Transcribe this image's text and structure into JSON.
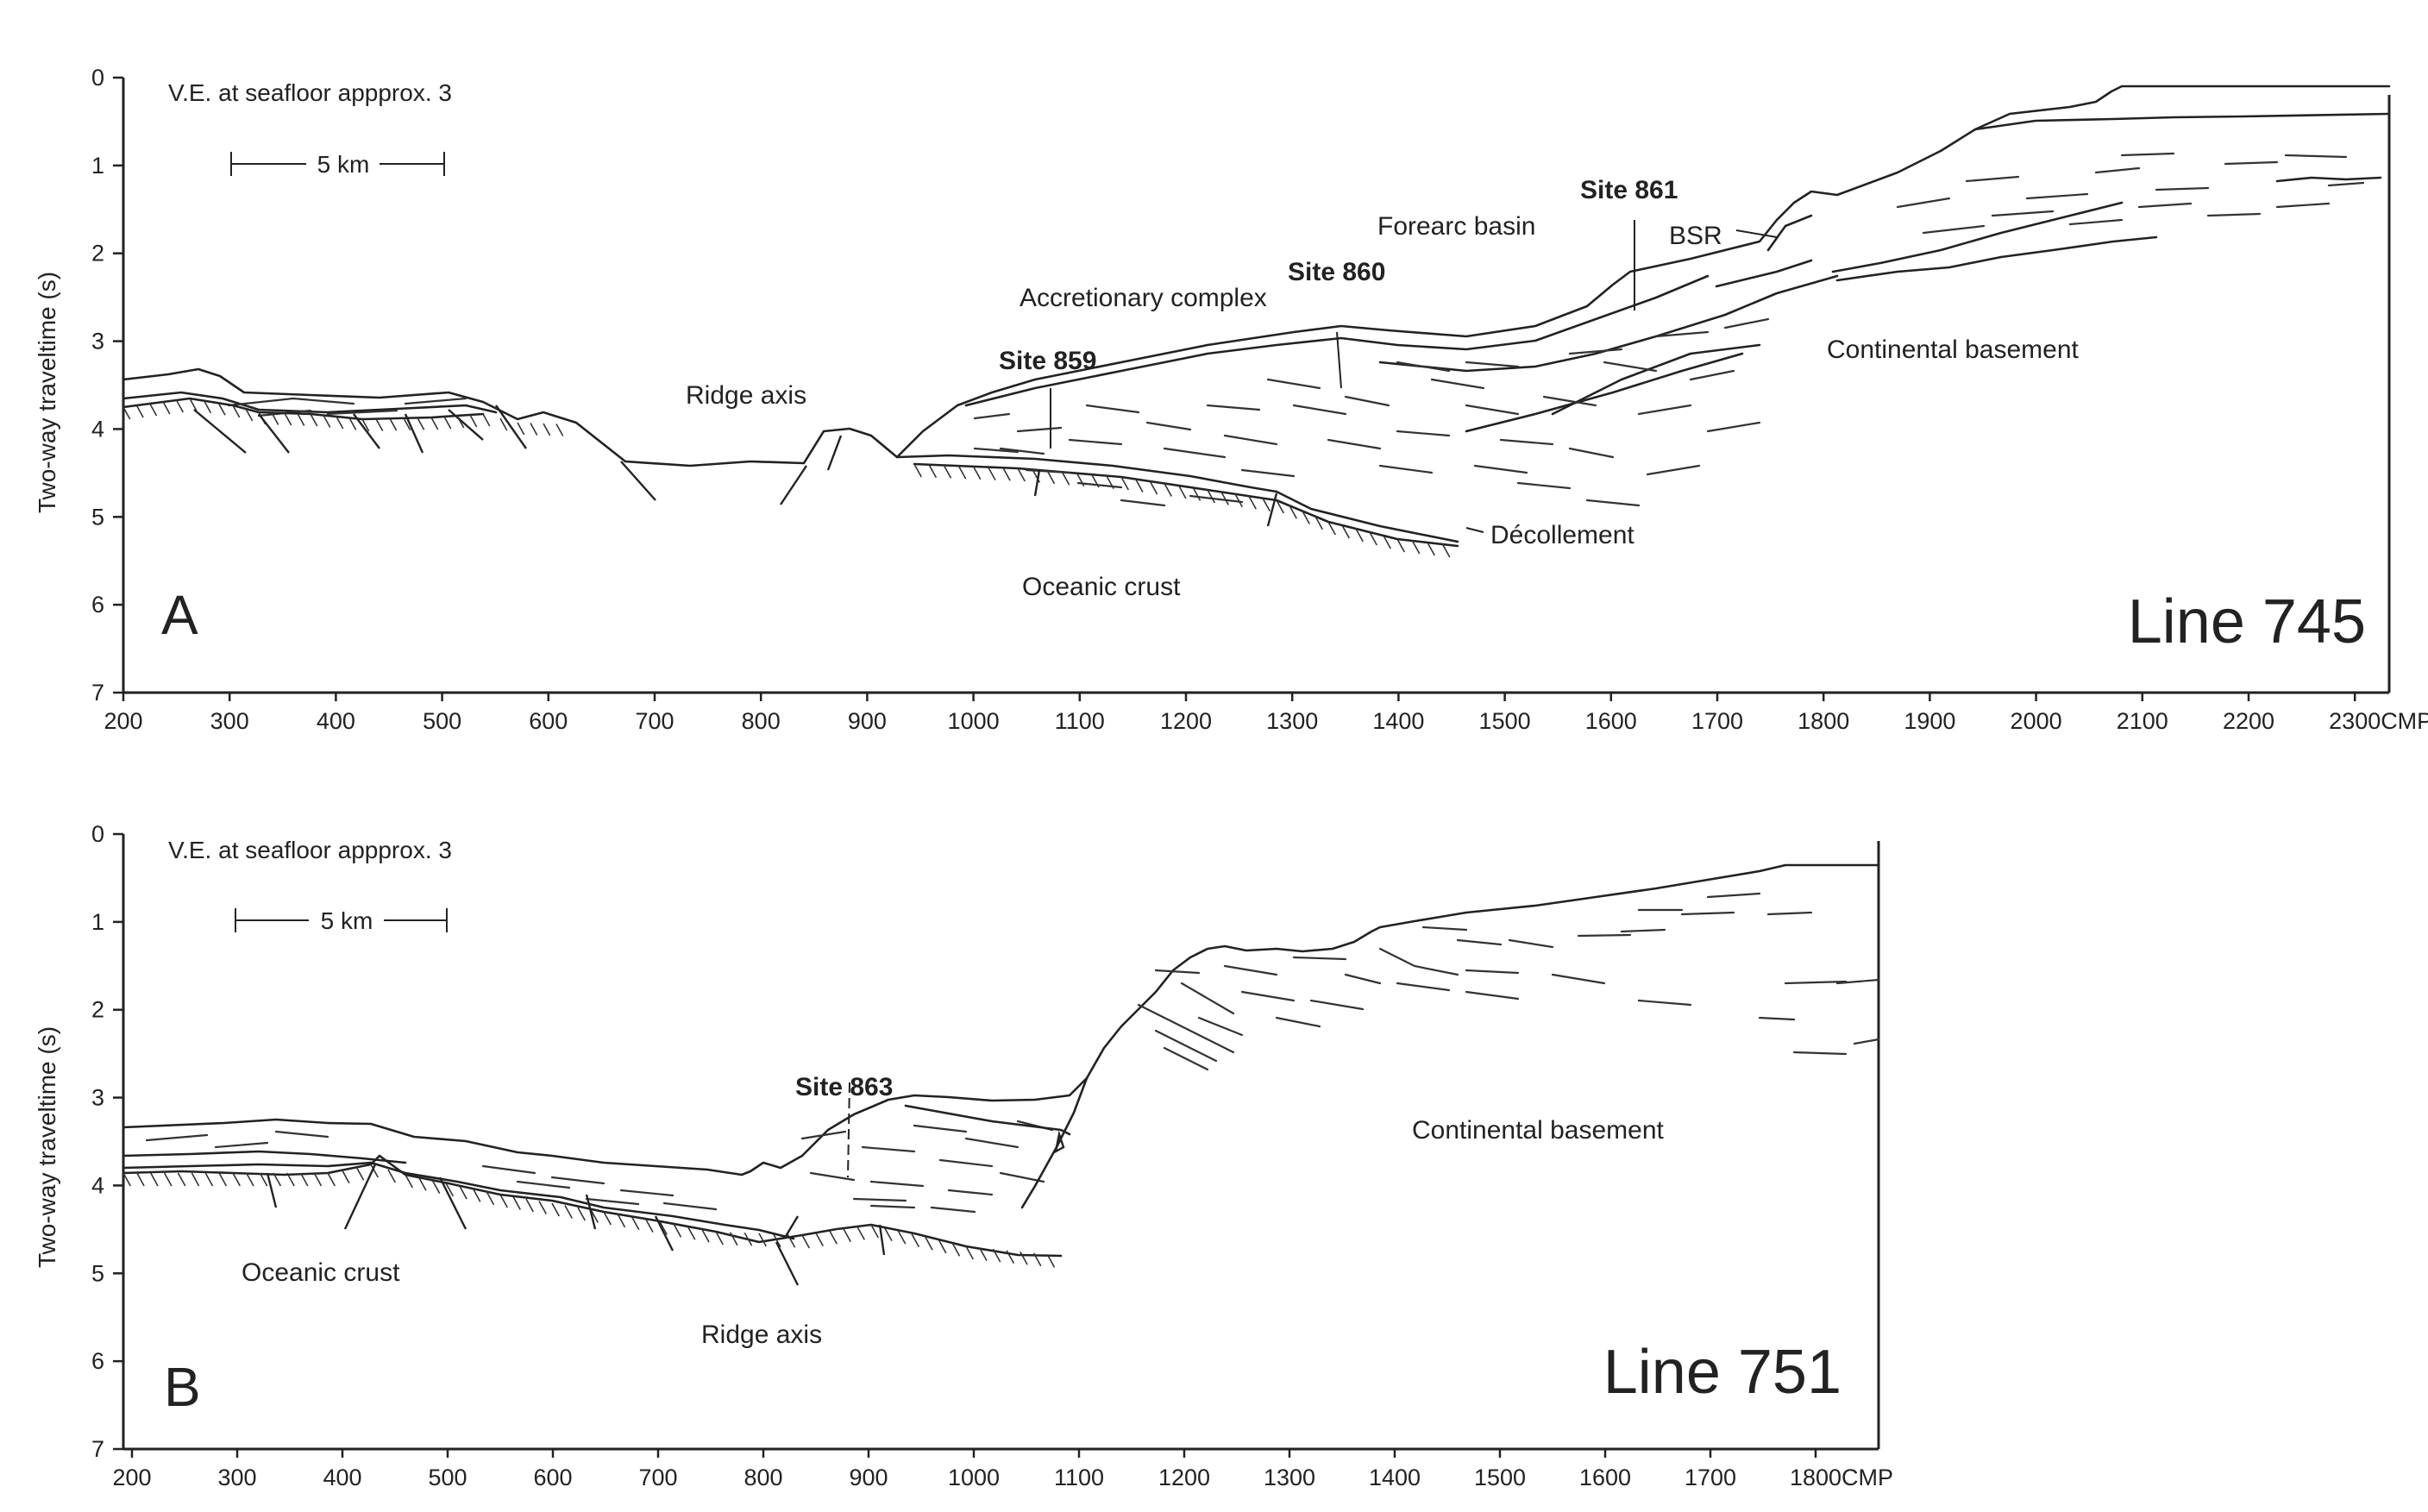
{
  "panels": [
    {
      "letter": "A",
      "line_name": "Line 745",
      "vertical_exaggeration": "V.E. at seafloor appprox. 3",
      "scale_bar": "5 km",
      "y_axis_label": "Two-way traveltime (s)",
      "y_ticks": [
        "0",
        "1",
        "2",
        "3",
        "4",
        "5",
        "6",
        "7"
      ],
      "x_ticks": [
        "200",
        "300",
        "400",
        "500",
        "600",
        "700",
        "800",
        "900",
        "1000",
        "1100",
        "1200",
        "1300",
        "1400",
        "1500",
        "1600",
        "1700",
        "1800",
        "1900",
        "2000",
        "2100",
        "2200",
        "2300"
      ],
      "x_unit": "CMP",
      "labels": {
        "ridge_axis": "Ridge axis",
        "accretionary_complex": "Accretionary complex",
        "forearc_basin": "Forearc basin",
        "bsr": "BSR",
        "continental_basement": "Continental basement",
        "oceanic_crust": "Oceanic crust",
        "decollement": "Décollement"
      },
      "sites": [
        "Site 859",
        "Site 860",
        "Site 861"
      ]
    },
    {
      "letter": "B",
      "line_name": "Line 751",
      "vertical_exaggeration": "V.E. at seafloor appprox. 3",
      "scale_bar": "5 km",
      "y_axis_label": "Two-way traveltime (s)",
      "y_ticks": [
        "0",
        "1",
        "2",
        "3",
        "4",
        "5",
        "6",
        "7"
      ],
      "x_ticks": [
        "200",
        "300",
        "400",
        "500",
        "600",
        "700",
        "800",
        "900",
        "1000",
        "1100",
        "1200",
        "1300",
        "1400",
        "1500",
        "1600",
        "1700",
        "1800"
      ],
      "x_unit": "CMP",
      "labels": {
        "continental_basement": "Continental basement",
        "oceanic_crust": "Oceanic crust",
        "ridge_axis": "Ridge axis"
      },
      "sites": [
        "Site 863"
      ]
    }
  ]
}
